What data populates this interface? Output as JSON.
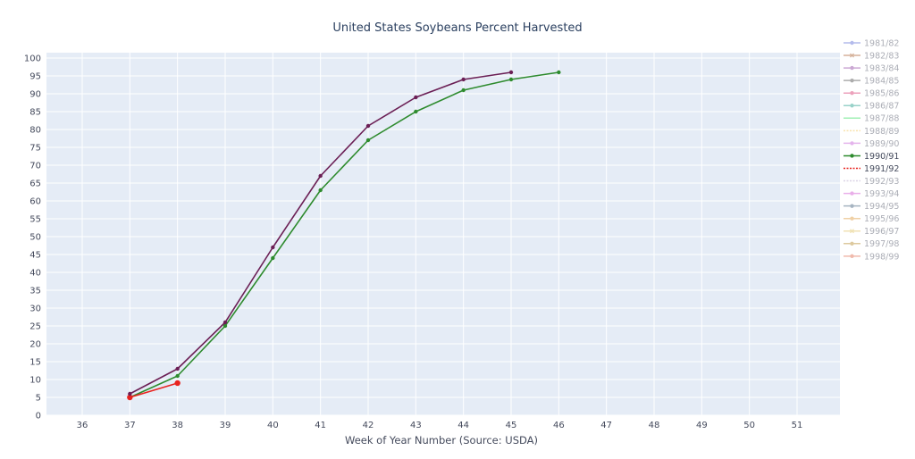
{
  "chart_data": {
    "type": "line",
    "title": "United States Soybeans Percent Harvested",
    "xlabel": "Week of Year Number     (Source: USDA)",
    "ylabel": "",
    "xlim": [
      35.25,
      51.9
    ],
    "ylim": [
      0,
      101.5
    ],
    "xticks": [
      36,
      37,
      38,
      39,
      40,
      41,
      42,
      43,
      44,
      45,
      46,
      47,
      48,
      49,
      50,
      51
    ],
    "yticks": [
      0,
      5,
      10,
      15,
      20,
      25,
      30,
      35,
      40,
      45,
      50,
      55,
      60,
      65,
      70,
      75,
      80,
      85,
      90,
      95,
      100
    ],
    "grid": true,
    "legend_position": "right",
    "series": [
      {
        "name": "1981/82",
        "color": "#5b6bd6",
        "marker": "circle",
        "faded": true,
        "x": [],
        "y": []
      },
      {
        "name": "1982/83",
        "color": "#a35522",
        "marker": "cross",
        "faded": true,
        "x": [],
        "y": []
      },
      {
        "name": "1983/84",
        "color": "#8e3fa0",
        "marker": "circle",
        "faded": true,
        "x": [],
        "y": []
      },
      {
        "name": "1984/85",
        "color": "#4a4a4a",
        "marker": "circle",
        "faded": true,
        "x": [],
        "y": []
      },
      {
        "name": "1985/86",
        "color": "#d6336c",
        "marker": "circle",
        "faded": true,
        "x": [],
        "y": []
      },
      {
        "name": "1986/87",
        "color": "#1f9d8a",
        "marker": "circle",
        "faded": true,
        "x": [],
        "y": []
      },
      {
        "name": "1987/88",
        "color": "#2ee05a",
        "marker": "none",
        "faded": true,
        "x": [],
        "y": []
      },
      {
        "name": "1988/89",
        "color": "#f2c14e",
        "marker": "dash",
        "faded": true,
        "x": [],
        "y": []
      },
      {
        "name": "1989/90",
        "color": "#c45bd6",
        "marker": "circle",
        "faded": true,
        "x": [],
        "y": []
      },
      {
        "name": "1990/91",
        "color": "#2e8b2e",
        "marker": "circle",
        "faded": false,
        "x": [
          37,
          38,
          39,
          40,
          41,
          42,
          43,
          44,
          45,
          46
        ],
        "y": [
          5,
          11,
          25,
          44,
          63,
          77,
          85,
          91,
          94,
          96
        ]
      },
      {
        "name": "1991/92",
        "color": "#e8231f",
        "marker": "dot-dash",
        "faded": false,
        "x": [
          37,
          38
        ],
        "y": [
          5,
          9
        ]
      },
      {
        "name": "1992/93",
        "color": "#b0a0c8",
        "marker": "dot-dash",
        "faded": true,
        "x": [],
        "y": []
      },
      {
        "name": "1993/94",
        "color": "#d04fd0",
        "marker": "circle",
        "faded": true,
        "x": [],
        "y": []
      },
      {
        "name": "1994/95",
        "color": "#3c5a78",
        "marker": "circle",
        "faded": true,
        "x": [],
        "y": []
      },
      {
        "name": "1995/96",
        "color": "#e09a3c",
        "marker": "circle",
        "faded": true,
        "x": [],
        "y": []
      },
      {
        "name": "1996/97",
        "color": "#e0c05a",
        "marker": "cross",
        "faded": true,
        "x": [],
        "y": []
      },
      {
        "name": "1997/98",
        "color": "#b58a2a",
        "marker": "circle",
        "faded": true,
        "x": [],
        "y": []
      },
      {
        "name": "1998/99",
        "color": "#e0684a",
        "marker": "circle",
        "faded": true,
        "x": [],
        "y": []
      },
      {
        "name": "",
        "color": "#6b1f55",
        "marker": "circle",
        "faded": false,
        "in_legend": false,
        "x": [
          37,
          38,
          39,
          40,
          41,
          42,
          43,
          44,
          45
        ],
        "y": [
          6,
          13,
          26,
          47,
          67,
          81,
          89,
          94,
          96
        ]
      }
    ]
  }
}
